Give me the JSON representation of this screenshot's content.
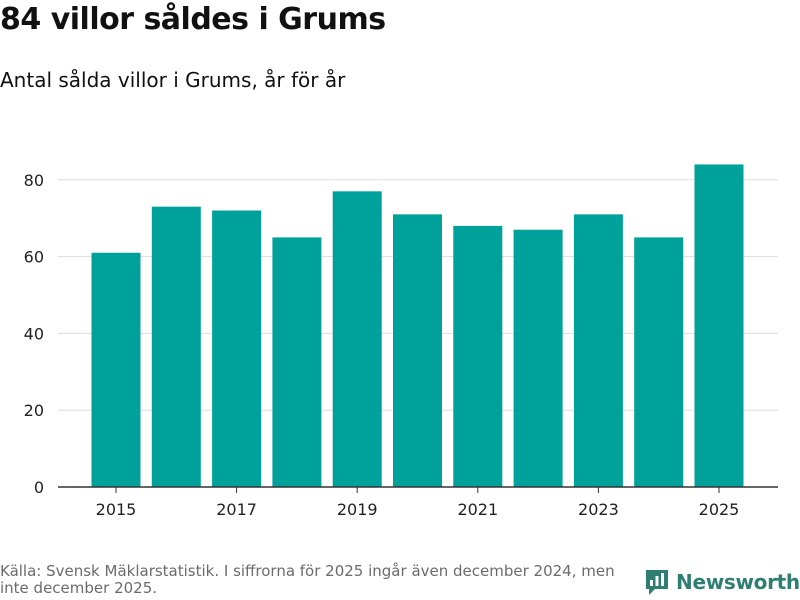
{
  "title": "84 villor såldes i Grums",
  "subtitle": "Antal sålda villor i Grums, år för år",
  "footer": {
    "source": "Källa: Svensk Mäklarstatistik. I siffrorna för 2025 ingår även december 2024, men inte december 2025.",
    "brand": "Newsworthy"
  },
  "colors": {
    "bar": "#00a19a",
    "grid": "#dddddd",
    "axis": "#333333",
    "brand": "#2e7f72"
  },
  "chart_data": {
    "type": "bar",
    "title": "84 villor såldes i Grums",
    "subtitle": "Antal sålda villor i Grums, år för år",
    "xlabel": "",
    "ylabel": "",
    "categories": [
      "2015",
      "2016",
      "2017",
      "2018",
      "2019",
      "2020",
      "2021",
      "2022",
      "2023",
      "2024",
      "2025"
    ],
    "values": [
      61,
      73,
      72,
      65,
      77,
      71,
      68,
      67,
      71,
      65,
      84
    ],
    "x_tick_labels": [
      "2015",
      "2017",
      "2019",
      "2021",
      "2023",
      "2025"
    ],
    "y_ticks": [
      0,
      20,
      40,
      60,
      80
    ],
    "ylim": [
      0,
      85
    ],
    "grid": true
  }
}
